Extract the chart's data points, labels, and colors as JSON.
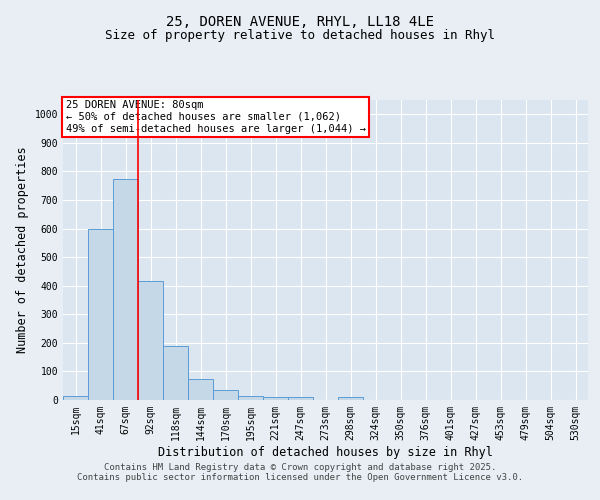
{
  "title_line1": "25, DOREN AVENUE, RHYL, LL18 4LE",
  "title_line2": "Size of property relative to detached houses in Rhyl",
  "xlabel": "Distribution of detached houses by size in Rhyl",
  "ylabel": "Number of detached properties",
  "categories": [
    "15sqm",
    "41sqm",
    "67sqm",
    "92sqm",
    "118sqm",
    "144sqm",
    "170sqm",
    "195sqm",
    "221sqm",
    "247sqm",
    "273sqm",
    "298sqm",
    "324sqm",
    "350sqm",
    "376sqm",
    "401sqm",
    "427sqm",
    "453sqm",
    "479sqm",
    "504sqm",
    "530sqm"
  ],
  "values": [
    15,
    600,
    775,
    415,
    190,
    75,
    35,
    15,
    10,
    10,
    0,
    10,
    0,
    0,
    0,
    0,
    0,
    0,
    0,
    0,
    0
  ],
  "bar_color": "#c5d8e8",
  "bar_edge_color": "#5b9bd5",
  "vline_color": "red",
  "annotation_box_text": "25 DOREN AVENUE: 80sqm\n← 50% of detached houses are smaller (1,062)\n49% of semi-detached houses are larger (1,044) →",
  "annotation_box_color": "red",
  "background_color": "#e8eef4",
  "plot_background_color": "#dce6f0",
  "grid_color": "#c8d8e8",
  "ylim": [
    0,
    1050
  ],
  "yticks": [
    0,
    100,
    200,
    300,
    400,
    500,
    600,
    700,
    800,
    900,
    1000
  ],
  "footer_text": "Contains HM Land Registry data © Crown copyright and database right 2025.\nContains public sector information licensed under the Open Government Licence v3.0.",
  "title_fontsize": 10,
  "subtitle_fontsize": 9,
  "axis_label_fontsize": 8.5,
  "tick_fontsize": 7,
  "annotation_fontsize": 7.5,
  "footer_fontsize": 6.5
}
